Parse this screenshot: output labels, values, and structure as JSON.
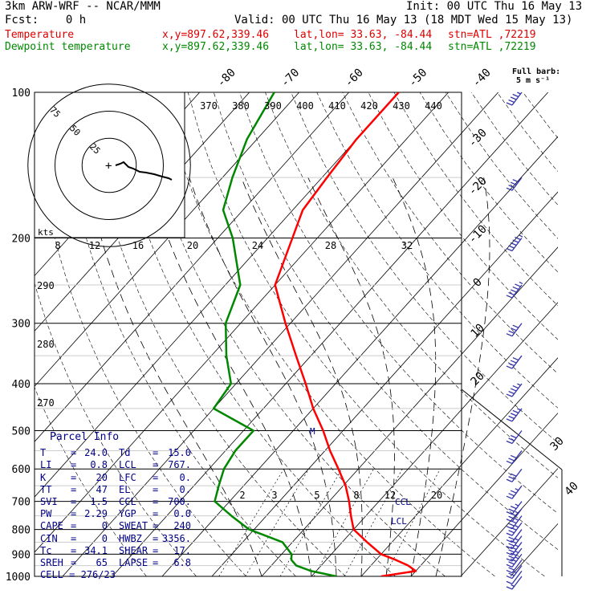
{
  "header": {
    "model": "3km ARW-WRF -- NCAR/MMM",
    "init": "Init: 00 UTC Thu 16 May 13",
    "fcst": "Fcst:    0 h",
    "valid": "Valid: 00 UTC Thu 16 May 13 (18 MDT Wed 15 May 13)",
    "temp_line": {
      "label": "Temperature",
      "xy": "x,y=897.62,339.46",
      "latlon": "lat,lon= 33.63, -84.44",
      "stn": "stn=ATL ,72219"
    },
    "dew_line": {
      "label": "Dewpoint temperature",
      "xy": "x,y=897.62,339.46",
      "latlon": "lat,lon= 33.63, -84.44",
      "stn": "stn=ATL ,72219"
    },
    "barb_label_1": "Full barb:",
    "barb_label_2": "5 m s⁻¹"
  },
  "parcel_info": {
    "title": "Parcel Info",
    "rows": [
      {
        "k1": "T",
        "v1": "24.0",
        "k2": "Td",
        "v2": "15.0"
      },
      {
        "k1": "LI",
        "v1": "0.8",
        "k2": "LCL",
        "v2": "767."
      },
      {
        "k1": "K",
        "v1": "20",
        "k2": "LFC",
        "v2": "0."
      },
      {
        "k1": "TT",
        "v1": "47",
        "k2": "EL",
        "v2": "0."
      },
      {
        "k1": "SVI",
        "v1": "1.5",
        "k2": "CCL",
        "v2": "700."
      },
      {
        "k1": "PW",
        "v1": "2.29",
        "k2": "YGP",
        "v2": "0.0"
      },
      {
        "k1": "CAPE",
        "v1": "0",
        "k2": "SWEAT",
        "v2": "240"
      },
      {
        "k1": "CIN",
        "v1": "0",
        "k2": "HWBZ",
        "v2": "3356."
      },
      {
        "k1": "Tc",
        "v1": "34.1",
        "k2": "SHEAR",
        "v2": "17."
      },
      {
        "k1": "SREH",
        "v1": "65",
        "k2": "LAPSE",
        "v2": "6.8"
      },
      {
        "k1": "CELL",
        "v1": "276/23",
        "k2": "",
        "v2": ""
      }
    ]
  },
  "chart_data": {
    "type": "line",
    "title": "",
    "xlabel": "",
    "ylabel": "",
    "ylim": [
      1000,
      100
    ],
    "pressure_ticks": [
      100,
      200,
      300,
      400,
      500,
      600,
      700,
      800,
      900,
      1000
    ],
    "isotherm_ticks": [
      -80,
      -70,
      -60,
      -50,
      -40,
      -30,
      -20,
      -10,
      0,
      10,
      20,
      30,
      40
    ],
    "theta_labels_top": [
      370,
      380,
      390,
      400,
      410,
      420,
      430,
      440
    ],
    "theta_labels_left": [
      290,
      280,
      270
    ],
    "mixing_ratio_labels_low": [
      2,
      3,
      5,
      8,
      12,
      20
    ],
    "mixing_ratio_labels_high": [
      8,
      12,
      16,
      20,
      24,
      28,
      32
    ],
    "hodograph": {
      "ring_labels": [
        25,
        50,
        75
      ],
      "units": "kts",
      "trace_u": [
        0,
        6,
        10,
        12,
        16,
        22,
        30,
        38,
        48,
        58,
        66,
        70
      ],
      "trace_v": [
        0,
        2,
        4,
        2,
        -2,
        -4,
        -8,
        -9,
        -11,
        -14,
        -16,
        -18
      ]
    },
    "markers": [
      "CCL",
      "LCL",
      "M"
    ],
    "series": [
      {
        "name": "Temperature",
        "color": "#ff0000",
        "p": [
          1000,
          975,
          950,
          925,
          900,
          850,
          800,
          750,
          700,
          650,
          600,
          550,
          500,
          450,
          400,
          350,
          300,
          250,
          200,
          175,
          150,
          125,
          100
        ],
        "t": [
          24.0,
          30.0,
          27.5,
          24.0,
          20.0,
          15.0,
          10.0,
          7.0,
          4.0,
          0.5,
          -4.0,
          -9.0,
          -14.0,
          -20.0,
          -26.0,
          -33.0,
          -41.0,
          -50.0,
          -55.0,
          -58.0,
          -59.0,
          -60.0,
          -60.0
        ]
      },
      {
        "name": "Dewpoint temperature",
        "color": "#008800",
        "p": [
          1000,
          975,
          950,
          925,
          900,
          850,
          800,
          750,
          700,
          650,
          600,
          550,
          500,
          450,
          400,
          350,
          300,
          250,
          200,
          175,
          150,
          125,
          100
        ],
        "t": [
          15.0,
          9.0,
          5.0,
          3.0,
          2.0,
          -2.0,
          -11.0,
          -17.0,
          -23.0,
          -25.0,
          -27.0,
          -28.0,
          -28.0,
          -40.0,
          -41.0,
          -47.0,
          -53.0,
          -57.0,
          -67.0,
          -74.0,
          -78.0,
          -82.0,
          -85.0
        ]
      }
    ],
    "wind_barbs": {
      "color": "#3333aa",
      "p": [
        1000,
        975,
        950,
        925,
        900,
        875,
        850,
        825,
        800,
        775,
        750,
        725,
        700,
        650,
        600,
        550,
        500,
        450,
        400,
        350,
        300,
        250,
        200,
        150,
        100
      ],
      "speed_kt": [
        5,
        10,
        15,
        20,
        25,
        25,
        25,
        25,
        20,
        25,
        25,
        25,
        25,
        25,
        30,
        30,
        30,
        35,
        35,
        40,
        40,
        45,
        45,
        40,
        35
      ]
    }
  }
}
